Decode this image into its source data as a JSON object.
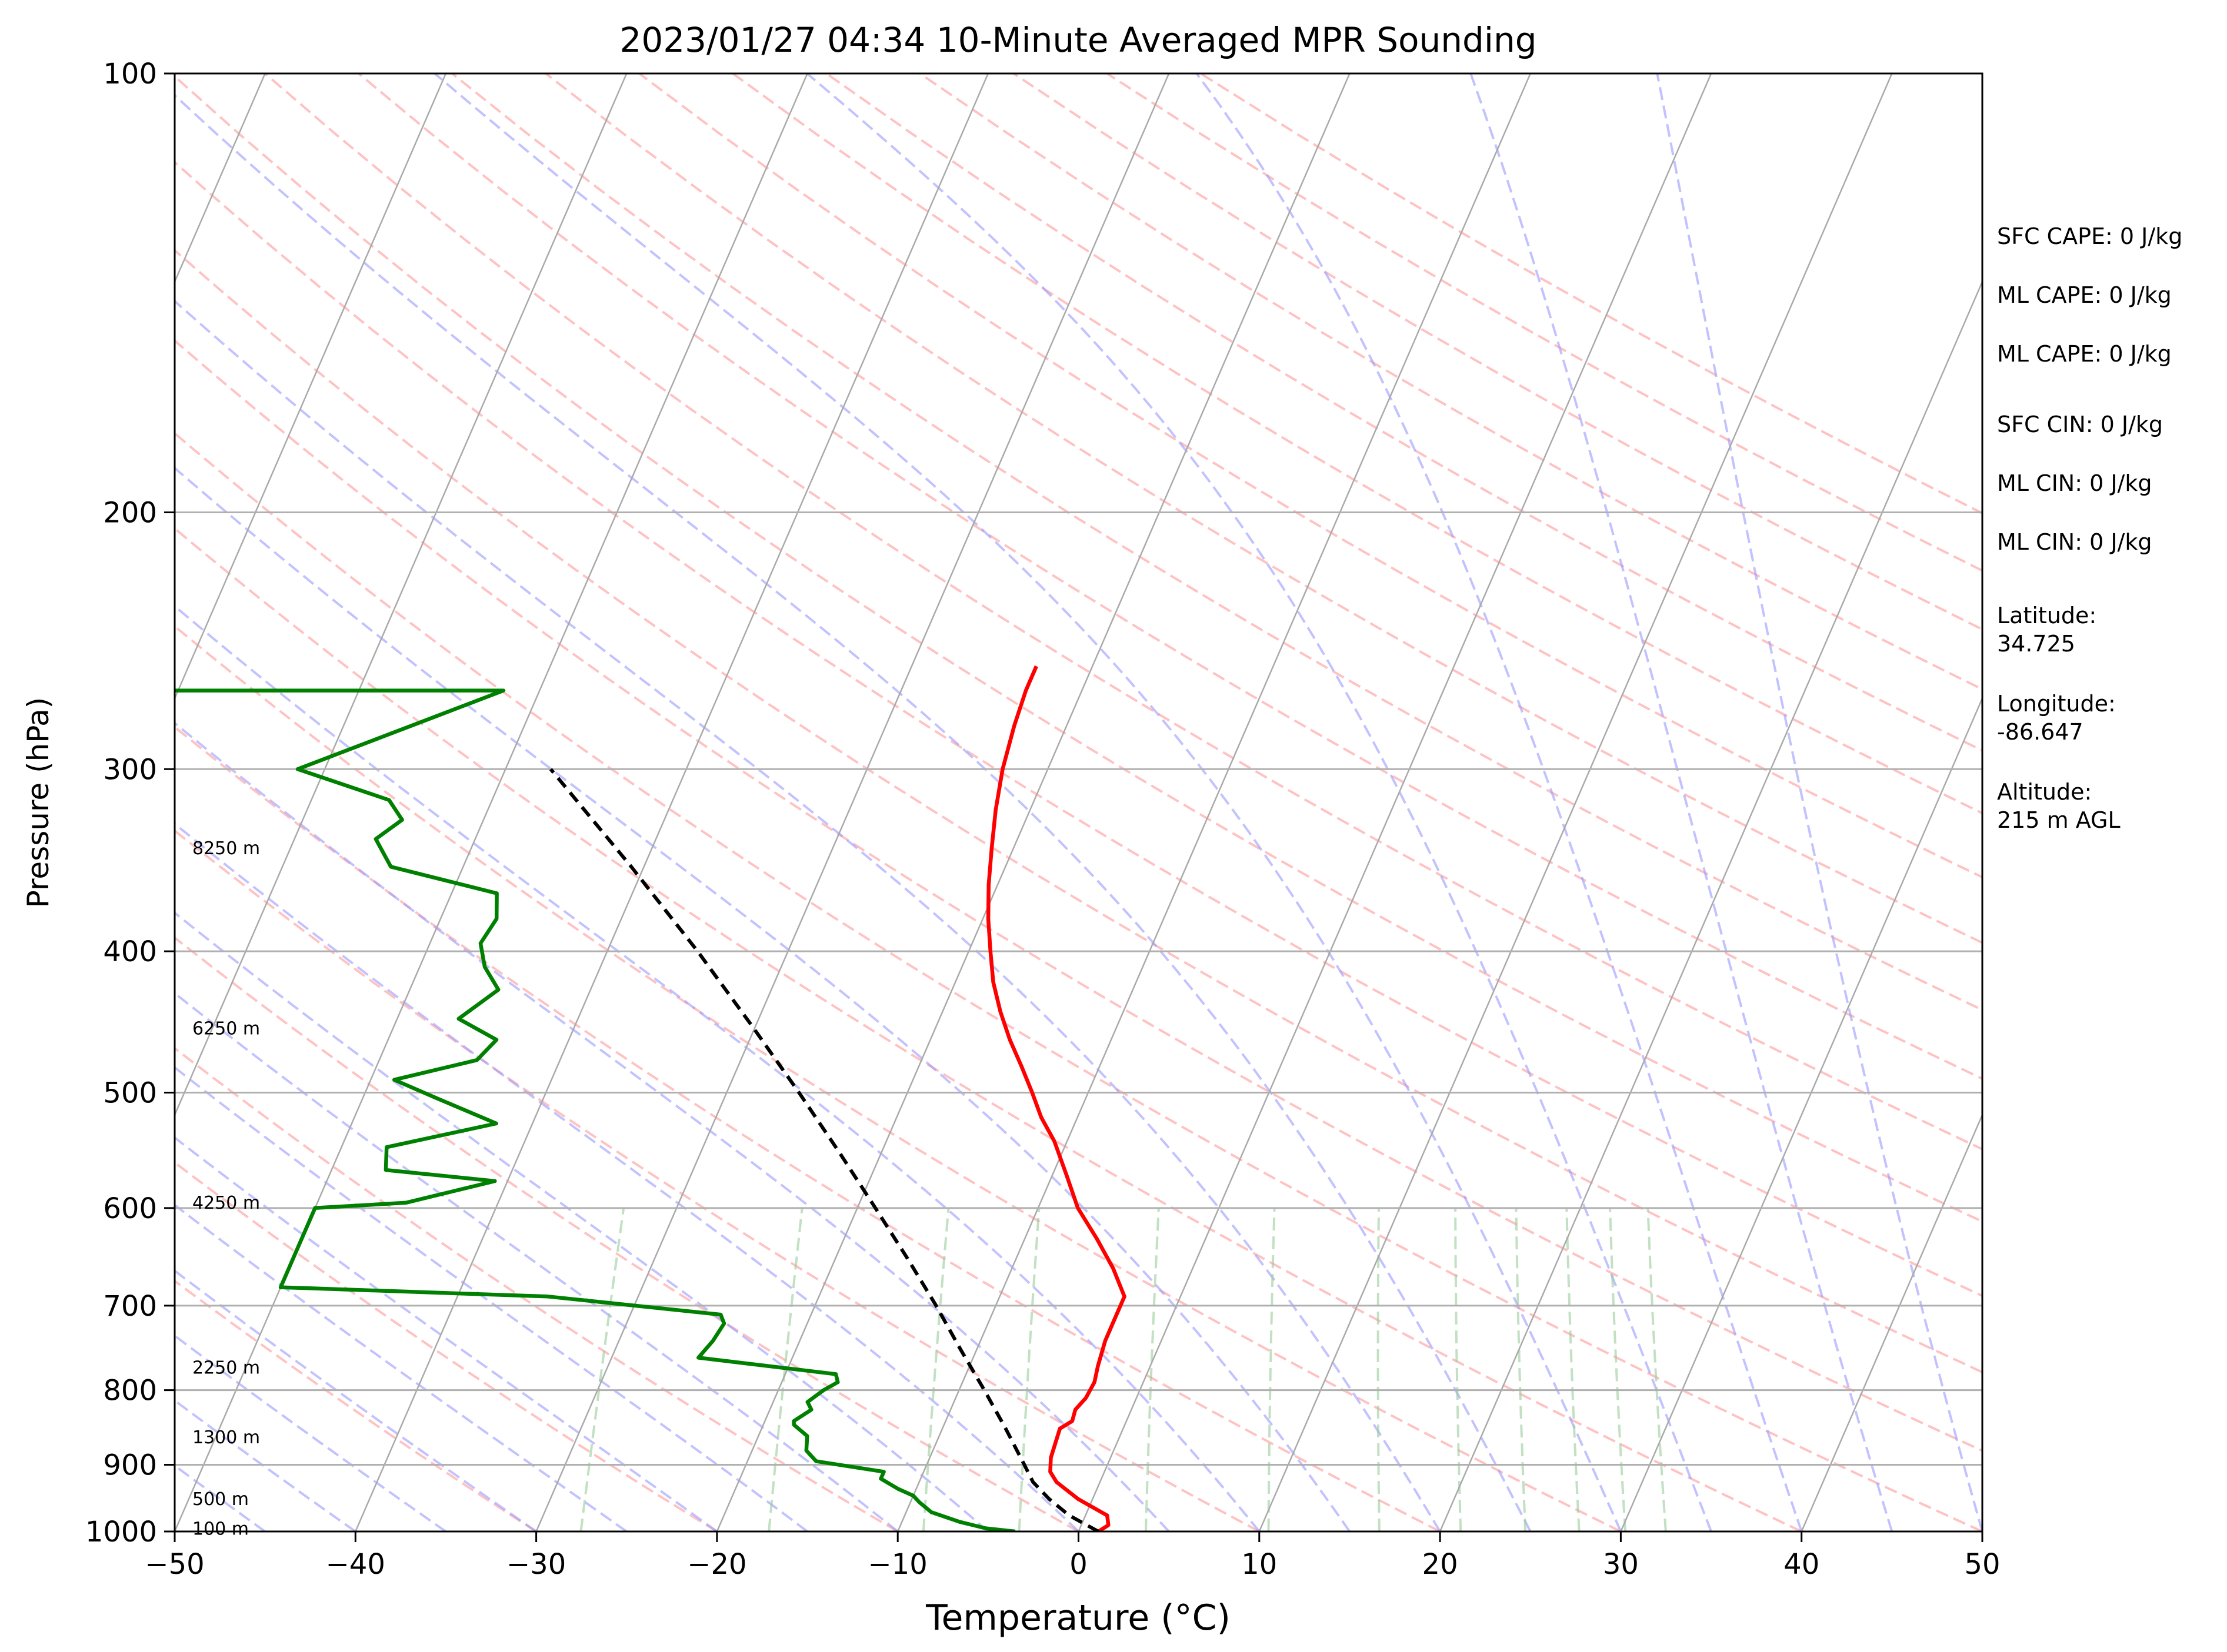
{
  "chart_data": {
    "type": "line",
    "chart_kind": "skew-t log-p sounding",
    "title": "2023/01/27 04:34 10-Minute Averaged MPR Sounding",
    "xlabel": "Temperature (°C)",
    "ylabel": "Pressure (hPa)",
    "xlim": [
      -50,
      50
    ],
    "ylim": [
      1000,
      100
    ],
    "y_scale": "log",
    "x_ticks": [
      -50,
      -40,
      -30,
      -20,
      -10,
      0,
      10,
      20,
      30,
      40,
      50
    ],
    "x_tick_labels": [
      "−50",
      "−40",
      "−30",
      "−20",
      "−10",
      "0",
      "10",
      "20",
      "30",
      "40",
      "50"
    ],
    "y_ticks": [
      1000,
      900,
      800,
      700,
      600,
      500,
      400,
      300,
      200,
      100
    ],
    "y_tick_labels": [
      "1000",
      "900",
      "800",
      "700",
      "600",
      "500",
      "400",
      "300",
      "200",
      "100"
    ],
    "grid": true,
    "background_lines": {
      "isotherm_color": "#a9a9a9",
      "dry_adiabat_color": "#ff9999",
      "moist_adiabat_color": "#9999ff",
      "mixing_ratio_color": "#99cc99"
    },
    "series": [
      {
        "role": "temperature",
        "color": "#ff0000",
        "points": [
          [
            1000,
            1.1
          ],
          [
            990,
            1.5
          ],
          [
            975,
            1.2
          ],
          [
            950,
            -0.8
          ],
          [
            925,
            -2.4
          ],
          [
            910,
            -3.0
          ],
          [
            890,
            -3.3
          ],
          [
            870,
            -3.4
          ],
          [
            850,
            -3.5
          ],
          [
            840,
            -3.0
          ],
          [
            825,
            -3.1
          ],
          [
            810,
            -2.8
          ],
          [
            790,
            -2.7
          ],
          [
            770,
            -2.9
          ],
          [
            740,
            -3.1
          ],
          [
            715,
            -3.1
          ],
          [
            690,
            -3.1
          ],
          [
            660,
            -4.4
          ],
          [
            630,
            -6.0
          ],
          [
            600,
            -7.8
          ],
          [
            570,
            -9.2
          ],
          [
            540,
            -10.7
          ],
          [
            520,
            -12.0
          ],
          [
            500,
            -13.1
          ],
          [
            480,
            -14.3
          ],
          [
            460,
            -15.6
          ],
          [
            440,
            -16.8
          ],
          [
            420,
            -17.9
          ],
          [
            400,
            -18.8
          ],
          [
            380,
            -19.7
          ],
          [
            360,
            -20.5
          ],
          [
            340,
            -21.2
          ],
          [
            320,
            -21.9
          ],
          [
            300,
            -22.5
          ],
          [
            280,
            -22.9
          ],
          [
            265,
            -23.1
          ],
          [
            255,
            -23.1
          ]
        ]
      },
      {
        "role": "dewpoint",
        "color": "#008000",
        "points": [
          [
            1000,
            -3.5
          ],
          [
            995,
            -5.2
          ],
          [
            985,
            -6.8
          ],
          [
            970,
            -8.6
          ],
          [
            955,
            -9.5
          ],
          [
            945,
            -10.0
          ],
          [
            935,
            -11.0
          ],
          [
            920,
            -12.2
          ],
          [
            910,
            -12.2
          ],
          [
            895,
            -16.2
          ],
          [
            880,
            -17.0
          ],
          [
            860,
            -17.3
          ],
          [
            845,
            -18.3
          ],
          [
            840,
            -18.4
          ],
          [
            825,
            -17.7
          ],
          [
            815,
            -18.1
          ],
          [
            800,
            -17.5
          ],
          [
            790,
            -16.9
          ],
          [
            780,
            -17.2
          ],
          [
            760,
            -25.2
          ],
          [
            740,
            -24.8
          ],
          [
            720,
            -24.6
          ],
          [
            710,
            -25.0
          ],
          [
            690,
            -35.0
          ],
          [
            680,
            -50.0
          ],
          [
            600,
            -50.0
          ],
          [
            595,
            -45.1
          ],
          [
            575,
            -40.7
          ],
          [
            565,
            -47.0
          ],
          [
            545,
            -47.5
          ],
          [
            525,
            -42.0
          ],
          [
            505,
            -45.8
          ],
          [
            490,
            -48.7
          ],
          [
            475,
            -44.6
          ],
          [
            460,
            -44.0
          ],
          [
            445,
            -46.6
          ],
          [
            425,
            -45.1
          ],
          [
            410,
            -46.4
          ],
          [
            395,
            -47.2
          ],
          [
            380,
            -46.9
          ],
          [
            365,
            -47.5
          ],
          [
            350,
            -54.0
          ],
          [
            335,
            -55.5
          ],
          [
            325,
            -54.5
          ],
          [
            315,
            -55.7
          ],
          [
            300,
            -61.5
          ],
          [
            265,
            -52.0
          ],
          [
            265,
            -77.0
          ]
        ]
      },
      {
        "role": "parcel",
        "color": "#000000",
        "points": [
          [
            1000,
            1.1
          ],
          [
            975,
            -0.9
          ],
          [
            950,
            -2.4
          ],
          [
            925,
            -3.7
          ],
          [
            900,
            -4.6
          ],
          [
            850,
            -6.5
          ],
          [
            800,
            -8.6
          ],
          [
            750,
            -10.9
          ],
          [
            700,
            -13.3
          ],
          [
            650,
            -16.0
          ],
          [
            600,
            -19.0
          ],
          [
            550,
            -22.3
          ],
          [
            500,
            -26.0
          ],
          [
            450,
            -30.2
          ],
          [
            400,
            -35.0
          ],
          [
            350,
            -40.7
          ],
          [
            300,
            -47.5
          ]
        ]
      }
    ],
    "height_labels": [
      {
        "label": "100 m",
        "pressure": 996
      },
      {
        "label": "500 m",
        "pressure": 950
      },
      {
        "label": "1300 m",
        "pressure": 862
      },
      {
        "label": "2250 m",
        "pressure": 772
      },
      {
        "label": "4250 m",
        "pressure": 595
      },
      {
        "label": "6250 m",
        "pressure": 452
      },
      {
        "label": "8250 m",
        "pressure": 340
      }
    ],
    "info_lines": [
      "SFC CAPE: 0 J/kg",
      "ML CAPE: 0 J/kg",
      "ML CAPE: 0 J/kg",
      "SFC CIN: 0 J/kg",
      "ML CIN: 0 J/kg",
      "ML CIN: 0 J/kg",
      "Latitude:",
      "34.725",
      "Longitude:",
      "-86.647",
      "Altitude:",
      "215 m AGL"
    ]
  }
}
